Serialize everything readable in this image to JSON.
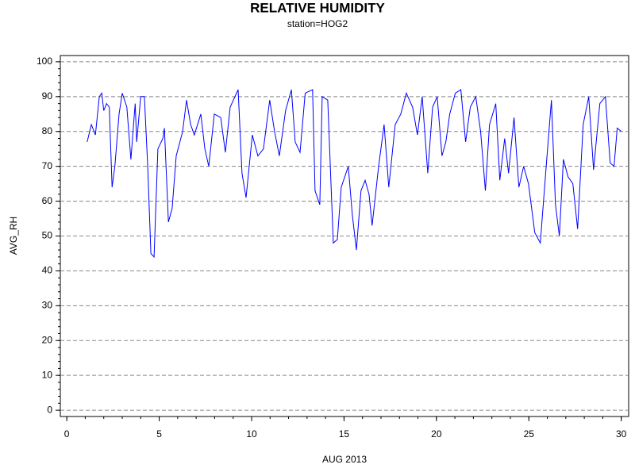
{
  "chart_data": {
    "type": "line",
    "title": "RELATIVE HUMIDITY",
    "subtitle": "station=HOG2",
    "xlabel": "AUG 2013",
    "ylabel": "AVG_RH",
    "xlim": [
      -0.35,
      30.4
    ],
    "ylim": [
      -1.8,
      101.8
    ],
    "xticks": [
      0,
      5,
      10,
      15,
      20,
      25,
      30
    ],
    "yticks": [
      0,
      10,
      20,
      30,
      40,
      50,
      60,
      70,
      80,
      90,
      100
    ],
    "grid": true,
    "series": [
      {
        "name": "AVG_RH",
        "color": "#0000ff",
        "x": [
          1.1,
          1.33,
          1.55,
          1.76,
          1.89,
          2.0,
          2.15,
          2.3,
          2.45,
          2.6,
          2.83,
          3.0,
          3.25,
          3.47,
          3.7,
          3.78,
          4.0,
          4.2,
          4.38,
          4.55,
          4.72,
          4.93,
          5.2,
          5.28,
          5.5,
          5.7,
          5.92,
          6.27,
          6.48,
          6.7,
          6.9,
          7.25,
          7.47,
          7.68,
          7.98,
          8.33,
          8.58,
          8.84,
          9.27,
          9.48,
          9.7,
          10.04,
          10.34,
          10.64,
          10.98,
          11.24,
          11.5,
          11.84,
          12.15,
          12.36,
          12.62,
          12.9,
          13.3,
          13.43,
          13.69,
          13.82,
          14.12,
          14.42,
          14.64,
          14.85,
          15.23,
          15.45,
          15.67,
          15.92,
          16.14,
          16.35,
          16.52,
          16.87,
          17.17,
          17.42,
          17.77,
          18.07,
          18.37,
          18.71,
          18.97,
          19.23,
          19.53,
          19.79,
          20.04,
          20.3,
          20.51,
          20.72,
          21.02,
          21.32,
          21.58,
          21.83,
          22.13,
          22.39,
          22.65,
          22.87,
          23.21,
          23.43,
          23.69,
          23.9,
          24.2,
          24.46,
          24.72,
          24.98,
          25.32,
          25.62,
          25.97,
          26.22,
          26.44,
          26.65,
          26.87,
          27.12,
          27.38,
          27.64,
          27.94,
          28.24,
          28.5,
          28.84,
          29.14,
          29.4,
          29.61,
          29.78,
          30.0
        ],
        "values": [
          77,
          82,
          79,
          90,
          91,
          86,
          88,
          87,
          64,
          70,
          85,
          91,
          87,
          72,
          88,
          77,
          90,
          90,
          70,
          45,
          44,
          75,
          78,
          81,
          54,
          58,
          73,
          80,
          89,
          82,
          79,
          85,
          75,
          70,
          85,
          84,
          74,
          87,
          92,
          68,
          61,
          79,
          73,
          75,
          89,
          80,
          73,
          86,
          92,
          77,
          74,
          91,
          92,
          63,
          59,
          90,
          89,
          48,
          49,
          64,
          70,
          56,
          46,
          63,
          66,
          62,
          53,
          70,
          82,
          64,
          82,
          85,
          91,
          87,
          79,
          90,
          68,
          87,
          90,
          73,
          77,
          85,
          91,
          92,
          77,
          87,
          90,
          80,
          63,
          82,
          88,
          66,
          78,
          68,
          84,
          64,
          70,
          65,
          51,
          48,
          72,
          89,
          59,
          50,
          72,
          67,
          65,
          52,
          82,
          90,
          69,
          88,
          90,
          71,
          70,
          81,
          80
        ]
      }
    ]
  }
}
